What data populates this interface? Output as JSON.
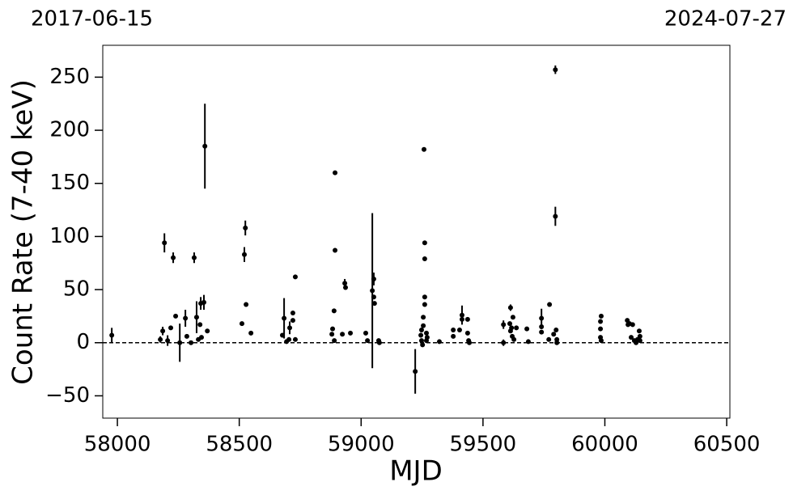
{
  "chart_data": {
    "type": "scatter",
    "annotations": [
      "2017-06-15",
      "2024-07-27"
    ],
    "xlabel": "MJD",
    "ylabel": "Count Rate (7-40 keV)",
    "xlim": [
      57940,
      60513
    ],
    "ylim": [
      -71,
      280
    ],
    "xticks": [
      58000,
      58500,
      59000,
      59500,
      60000,
      60500
    ],
    "yticks": [
      {
        "value": -50,
        "label": "−50"
      },
      0,
      50,
      100,
      150,
      200,
      250
    ],
    "hline": 0,
    "series": [
      {
        "color": "#000000",
        "x": [
          57977,
          58176,
          58193,
          58186,
          58206,
          58219,
          58229,
          58239,
          58256,
          58279,
          58285,
          58302,
          58315,
          58325,
          58332,
          58339,
          58342,
          58345,
          58355,
          58359,
          58369,
          58511,
          58521,
          58525,
          58528,
          58548,
          58677,
          58684,
          58694,
          58704,
          58707,
          58720,
          58720,
          58730,
          58730,
          58880,
          58883,
          58889,
          58893,
          58893,
          58890,
          58923,
          58933,
          58936,
          58956,
          59019,
          59026,
          59046,
          59052,
          59052,
          59055,
          59072,
          59075,
          59222,
          59248,
          59245,
          59248,
          59252,
          59255,
          59255,
          59258,
          59261,
          59261,
          59261,
          59261,
          59268,
          59271,
          59268,
          59321,
          59378,
          59378,
          59404,
          59414,
          59414,
          59437,
          59437,
          59441,
          59444,
          59584,
          59584,
          59613,
          59610,
          59613,
          59617,
          59620,
          59623,
          59627,
          59637,
          59680,
          59686,
          59740,
          59740,
          59740,
          59773,
          59770,
          59790,
          59797,
          59797,
          59800,
          59803,
          59803,
          59985,
          59982,
          59982,
          59982,
          59985,
          60092,
          60095,
          60101,
          60108,
          60114,
          60121,
          60128,
          60134,
          60141,
          60144,
          60144
        ],
        "values": [
          7,
          3,
          94,
          11,
          2,
          14,
          80,
          25,
          0,
          23,
          6,
          0,
          80,
          24,
          3,
          17,
          37,
          5,
          38,
          185,
          11,
          18,
          83,
          108,
          36,
          9,
          7,
          23,
          1,
          3,
          14,
          21,
          28,
          62,
          3,
          8,
          13,
          30,
          87,
          160,
          2,
          8,
          56,
          52,
          9,
          9,
          2,
          49,
          60,
          43,
          37,
          2,
          0,
          -27,
          12,
          7,
          2,
          -2,
          16,
          24,
          182,
          94,
          79,
          43,
          36,
          9,
          5,
          2,
          1,
          6,
          12,
          12,
          26,
          22,
          22,
          9,
          2,
          0,
          17,
          0,
          33,
          18,
          11,
          14,
          6,
          24,
          3,
          14,
          13,
          1,
          23,
          15,
          10,
          36,
          3,
          8,
          119,
          257,
          12,
          3,
          0,
          25,
          20,
          13,
          5,
          2,
          21,
          17,
          18,
          5,
          17,
          2,
          0,
          3,
          11,
          6,
          2
        ],
        "errors": [
          7,
          3,
          9,
          4,
          5,
          2,
          5,
          2,
          18,
          8,
          2,
          2,
          5,
          15,
          2,
          2,
          6,
          2,
          7,
          40,
          2,
          2,
          7,
          7,
          2,
          2,
          2,
          19,
          2,
          2,
          6,
          2,
          2,
          2,
          2,
          2,
          2,
          2,
          2,
          2,
          2,
          2,
          4,
          2,
          2,
          2,
          2,
          73,
          6,
          2,
          2,
          2,
          2,
          21,
          2,
          2,
          2,
          2,
          2,
          2,
          2,
          2,
          2,
          2,
          2,
          2,
          2,
          2,
          2,
          2,
          2,
          2,
          9,
          2,
          2,
          2,
          2,
          2,
          4,
          3,
          3,
          2,
          2,
          2,
          2,
          2,
          2,
          2,
          2,
          2,
          9,
          2,
          2,
          2,
          2,
          2,
          9,
          4,
          2,
          2,
          2,
          2,
          2,
          2,
          2,
          2,
          2,
          2,
          2,
          2,
          2,
          2,
          2,
          2,
          2,
          2,
          2
        ]
      }
    ]
  }
}
